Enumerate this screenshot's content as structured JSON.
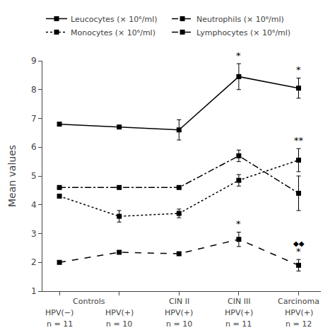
{
  "chart_data": {
    "type": "line",
    "ylabel": "Mean values",
    "categories": [
      "HPV(−)",
      "HPV(+)",
      "HPV(+)",
      "HPV(+)",
      "HPV(+)"
    ],
    "n_labels": [
      "n = 11",
      "n = 10",
      "n = 10",
      "n = 11",
      "n = 12"
    ],
    "groups": [
      "Controls",
      "Controls",
      "CIN II",
      "CIN III",
      "Carcinoma"
    ],
    "series": [
      {
        "name": "Leucocytes (× 10⁶/ml)",
        "color": "#000000",
        "marker": "square",
        "line_style": "solid",
        "values": [
          6.8,
          6.7,
          6.6,
          8.45,
          8.05
        ],
        "errors": [
          0.0,
          0.0,
          0.35,
          0.45,
          0.35
        ]
      },
      {
        "name": "Neutrophils (× 10⁶/ml)",
        "color": "#000000",
        "marker": "square",
        "line_style": "dashdot",
        "values": [
          4.6,
          4.6,
          4.6,
          5.7,
          4.4
        ],
        "errors": [
          0.0,
          0.0,
          0.0,
          0.2,
          0.6
        ]
      },
      {
        "name": "Monocytes (× 10⁶/ml)",
        "color": "#000000",
        "marker": "square",
        "line_style": "dot",
        "values": [
          4.3,
          3.6,
          3.7,
          4.85,
          5.55
        ],
        "errors": [
          0.0,
          0.2,
          0.15,
          0.2,
          0.4
        ]
      },
      {
        "name": "Lymphocytes (× 10⁶/ml)",
        "color": "#000000",
        "marker": "square",
        "line_style": "dash",
        "values": [
          2.0,
          2.35,
          2.3,
          2.8,
          1.9
        ],
        "errors": [
          0.0,
          0.0,
          0.0,
          0.25,
          0.2
        ]
      }
    ],
    "annotations": [
      {
        "text": "*",
        "series": "Leucocytes (× 10⁶/ml)",
        "category": 3,
        "color": "#000000"
      },
      {
        "text": "*",
        "series": "Leucocytes (× 10⁶/ml)",
        "category": 4,
        "color": "#000000"
      },
      {
        "text": "**",
        "series": "Monocytes (× 10⁶/ml)",
        "category": 4,
        "color": "#000000"
      },
      {
        "text": "*",
        "series": "Lymphocytes (× 10⁶/ml)",
        "category": 3,
        "color": "#000000"
      },
      {
        "text": "*",
        "series": "Lymphocytes (× 10⁶/ml)",
        "category": 4,
        "color": "#000000"
      },
      {
        "text": "◆◆",
        "series": "Lymphocytes (× 10⁶/ml)",
        "category": 4,
        "color": "#000000"
      }
    ],
    "ylim": [
      1,
      9
    ],
    "yticks": [
      1,
      2,
      3,
      4,
      5,
      6,
      7,
      8,
      9
    ],
    "grid": false,
    "legend": "top"
  }
}
